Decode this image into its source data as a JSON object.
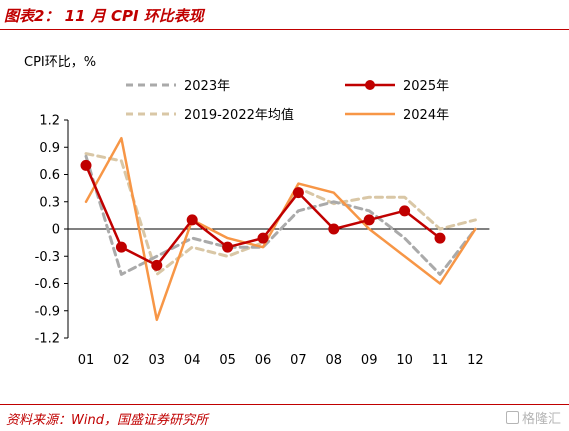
{
  "header": {
    "title": "图表2：  11 月 CPI 环比表现"
  },
  "footer": {
    "source": "资料来源：Wind，国盛证券研究所",
    "watermark": "格隆汇"
  },
  "colors": {
    "accent": "#c00000",
    "series_2023": "#aaaaaa",
    "series_2025": "#c00000",
    "series_avg": "#d9c7a6",
    "series_2024": "#f79646",
    "axis": "#000000"
  },
  "chart_data": {
    "type": "line",
    "ylabel": "CPI环比，%",
    "ylim": [
      -1.2,
      1.2
    ],
    "ytick_values": [
      1.2,
      0.9,
      0.6,
      0.3,
      0,
      -0.3,
      -0.6,
      -0.9,
      -1.2
    ],
    "ytick_labels": [
      "1.2",
      "0.9",
      "0.6",
      "0.3",
      "0",
      "-0.3",
      "-0.6",
      "-0.9",
      "-1.2"
    ],
    "categories": [
      "01",
      "02",
      "03",
      "04",
      "05",
      "06",
      "07",
      "08",
      "09",
      "10",
      "11",
      "12"
    ],
    "legend_position": "top",
    "grid": false,
    "series": [
      {
        "name": "2023年",
        "style": "dashed",
        "color": "#aaaaaa",
        "values": [
          0.8,
          -0.5,
          -0.3,
          -0.1,
          -0.2,
          -0.2,
          0.2,
          0.3,
          0.2,
          -0.1,
          -0.5,
          0.0
        ]
      },
      {
        "name": "2025年",
        "style": "solid-marker",
        "color": "#c00000",
        "values": [
          0.7,
          -0.2,
          -0.4,
          0.1,
          -0.2,
          -0.1,
          0.4,
          0.0,
          0.1,
          0.2,
          -0.1,
          null
        ]
      },
      {
        "name": "2019-2022年均值",
        "style": "dashed",
        "color": "#d9c7a6",
        "values": [
          0.83,
          0.75,
          -0.5,
          -0.2,
          -0.3,
          -0.15,
          0.45,
          0.28,
          0.35,
          0.35,
          0.0,
          0.1
        ]
      },
      {
        "name": "2024年",
        "style": "solid",
        "color": "#f79646",
        "values": [
          0.3,
          1.0,
          -1.0,
          0.1,
          -0.1,
          -0.2,
          0.5,
          0.4,
          0.0,
          -0.3,
          -0.6,
          0.0
        ]
      }
    ]
  }
}
